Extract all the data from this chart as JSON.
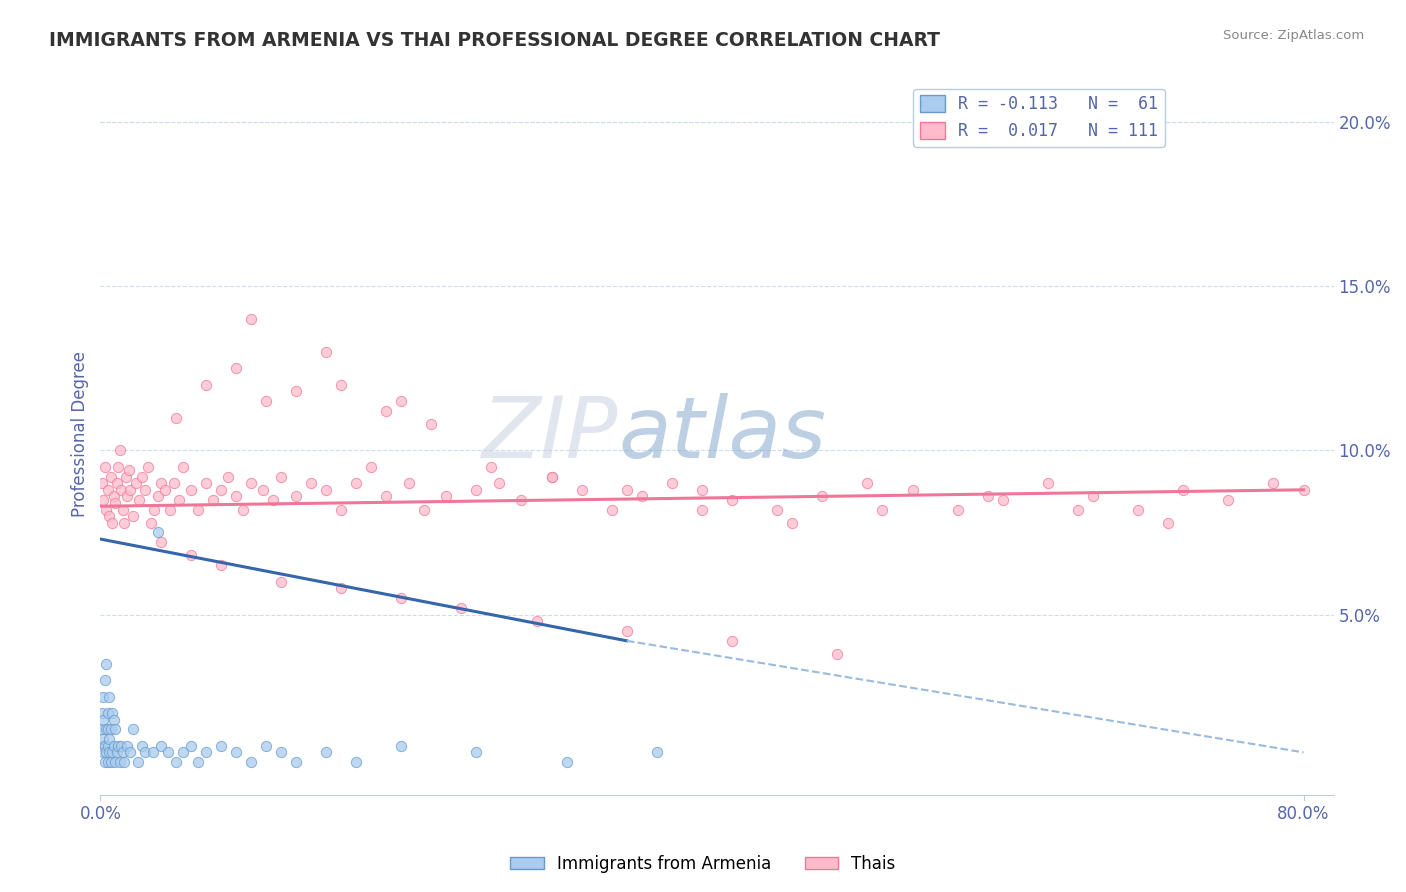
{
  "title": "IMMIGRANTS FROM ARMENIA VS THAI PROFESSIONAL DEGREE CORRELATION CHART",
  "source_text": "Source: ZipAtlas.com",
  "ylabel": "Professional Degree",
  "xlim": [
    0.0,
    0.82
  ],
  "ylim": [
    -0.005,
    0.215
  ],
  "yticks_right": [
    0.05,
    0.1,
    0.15,
    0.2
  ],
  "ytick_labels_right": [
    "5.0%",
    "10.0%",
    "15.0%",
    "20.0%"
  ],
  "series_armenia": {
    "color": "#aaccee",
    "edge_color": "#6699cc",
    "size": 55,
    "alpha": 0.75,
    "trend_color": "#3366aa",
    "trend_dashed_color": "#99bbdd"
  },
  "series_thai": {
    "color": "#ffbbcc",
    "edge_color": "#ee7799",
    "size": 55,
    "alpha": 0.75,
    "trend_color": "#ee7799"
  },
  "watermark": "ZIPatlas",
  "watermark_color": "#c8d8f0",
  "background_color": "#ffffff",
  "grid_color": "#ccddee",
  "title_color": "#333333",
  "axis_label_color": "#5566aa",
  "tick_label_color": "#5566aa",
  "legend_entries": [
    {
      "label": "R = -0.113   N =  61"
    },
    {
      "label": "R =  0.017   N = 111"
    }
  ],
  "armenia_x": [
    0.001,
    0.001,
    0.001,
    0.002,
    0.002,
    0.002,
    0.002,
    0.003,
    0.003,
    0.003,
    0.004,
    0.004,
    0.004,
    0.005,
    0.005,
    0.005,
    0.005,
    0.006,
    0.006,
    0.006,
    0.007,
    0.007,
    0.008,
    0.008,
    0.009,
    0.009,
    0.01,
    0.01,
    0.011,
    0.012,
    0.013,
    0.014,
    0.015,
    0.016,
    0.018,
    0.02,
    0.022,
    0.025,
    0.028,
    0.03,
    0.035,
    0.038,
    0.04,
    0.045,
    0.05,
    0.055,
    0.06,
    0.065,
    0.07,
    0.08,
    0.09,
    0.1,
    0.11,
    0.12,
    0.13,
    0.15,
    0.17,
    0.2,
    0.25,
    0.31,
    0.37
  ],
  "armenia_y": [
    0.01,
    0.015,
    0.02,
    0.008,
    0.012,
    0.018,
    0.025,
    0.005,
    0.01,
    0.03,
    0.008,
    0.015,
    0.035,
    0.005,
    0.01,
    0.015,
    0.02,
    0.008,
    0.012,
    0.025,
    0.005,
    0.015,
    0.008,
    0.02,
    0.01,
    0.018,
    0.005,
    0.015,
    0.008,
    0.01,
    0.005,
    0.01,
    0.008,
    0.005,
    0.01,
    0.008,
    0.015,
    0.005,
    0.01,
    0.008,
    0.008,
    0.075,
    0.01,
    0.008,
    0.005,
    0.008,
    0.01,
    0.005,
    0.008,
    0.01,
    0.008,
    0.005,
    0.01,
    0.008,
    0.005,
    0.008,
    0.005,
    0.01,
    0.008,
    0.005,
    0.008
  ],
  "thai_x": [
    0.001,
    0.002,
    0.003,
    0.004,
    0.005,
    0.006,
    0.007,
    0.008,
    0.009,
    0.01,
    0.011,
    0.012,
    0.013,
    0.014,
    0.015,
    0.016,
    0.017,
    0.018,
    0.019,
    0.02,
    0.022,
    0.024,
    0.026,
    0.028,
    0.03,
    0.032,
    0.034,
    0.036,
    0.038,
    0.04,
    0.043,
    0.046,
    0.049,
    0.052,
    0.055,
    0.06,
    0.065,
    0.07,
    0.075,
    0.08,
    0.085,
    0.09,
    0.095,
    0.1,
    0.108,
    0.115,
    0.12,
    0.13,
    0.14,
    0.15,
    0.16,
    0.17,
    0.18,
    0.19,
    0.205,
    0.215,
    0.23,
    0.25,
    0.265,
    0.28,
    0.3,
    0.32,
    0.34,
    0.36,
    0.38,
    0.4,
    0.42,
    0.45,
    0.48,
    0.51,
    0.54,
    0.57,
    0.6,
    0.63,
    0.66,
    0.69,
    0.72,
    0.75,
    0.78,
    0.8,
    0.1,
    0.15,
    0.2,
    0.05,
    0.07,
    0.09,
    0.11,
    0.13,
    0.16,
    0.19,
    0.22,
    0.26,
    0.3,
    0.35,
    0.4,
    0.46,
    0.52,
    0.59,
    0.65,
    0.71,
    0.04,
    0.06,
    0.08,
    0.12,
    0.16,
    0.2,
    0.24,
    0.29,
    0.35,
    0.42,
    0.49
  ],
  "thai_y": [
    0.09,
    0.085,
    0.095,
    0.082,
    0.088,
    0.08,
    0.092,
    0.078,
    0.086,
    0.084,
    0.09,
    0.095,
    0.1,
    0.088,
    0.082,
    0.078,
    0.092,
    0.086,
    0.094,
    0.088,
    0.08,
    0.09,
    0.085,
    0.092,
    0.088,
    0.095,
    0.078,
    0.082,
    0.086,
    0.09,
    0.088,
    0.082,
    0.09,
    0.085,
    0.095,
    0.088,
    0.082,
    0.09,
    0.085,
    0.088,
    0.092,
    0.086,
    0.082,
    0.09,
    0.088,
    0.085,
    0.092,
    0.086,
    0.09,
    0.088,
    0.082,
    0.09,
    0.095,
    0.086,
    0.09,
    0.082,
    0.086,
    0.088,
    0.09,
    0.085,
    0.092,
    0.088,
    0.082,
    0.086,
    0.09,
    0.088,
    0.085,
    0.082,
    0.086,
    0.09,
    0.088,
    0.082,
    0.085,
    0.09,
    0.086,
    0.082,
    0.088,
    0.085,
    0.09,
    0.088,
    0.14,
    0.13,
    0.115,
    0.11,
    0.12,
    0.125,
    0.115,
    0.118,
    0.12,
    0.112,
    0.108,
    0.095,
    0.092,
    0.088,
    0.082,
    0.078,
    0.082,
    0.086,
    0.082,
    0.078,
    0.072,
    0.068,
    0.065,
    0.06,
    0.058,
    0.055,
    0.052,
    0.048,
    0.045,
    0.042,
    0.038
  ]
}
